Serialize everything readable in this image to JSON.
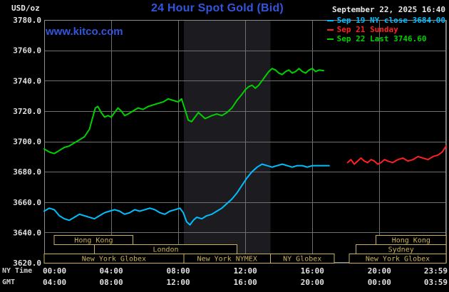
{
  "header": {
    "unit_label": "USD/oz",
    "title": "24 Hour Spot Gold (Bid)",
    "datetime": "September 22, 2025 16:40",
    "watermark": "www.kitco.com"
  },
  "colors": {
    "background": "#000000",
    "title_blue": "#3355dd",
    "text_white": "#e0e0e0",
    "grid": "#6f6f6f",
    "plot_border": "#8c8c8c",
    "session": "#c9b25a",
    "nymex_band": "#1b1b20",
    "sep19": "#00bfff",
    "sep21": "#ff2020",
    "sep22": "#00d000"
  },
  "legend": {
    "items": [
      {
        "id": "sep19",
        "label": "Sep 19 NY close 3684.00",
        "color": "#00bfff"
      },
      {
        "id": "sep21",
        "label": "Sep 21 Sunday",
        "color": "#ff2020"
      },
      {
        "id": "sep22",
        "label": "Sep 22 Last 3746.60",
        "color": "#00d000"
      }
    ]
  },
  "axis_labels": {
    "ny_time": "NY Time",
    "gmt": "GMT"
  },
  "chart_data": {
    "type": "line",
    "title": "24 Hour Spot Gold (Bid)",
    "ylabel": "USD/oz",
    "xlim_hours": [
      0,
      23.983
    ],
    "ylim": [
      3620,
      3780
    ],
    "grid": true,
    "legend_position": "top-right",
    "y_ticks": [
      3780,
      3760,
      3740,
      3720,
      3700,
      3680,
      3660,
      3640,
      3620
    ],
    "y_tick_labels": [
      "3780.0",
      "3760.0",
      "3740.0",
      "3720.0",
      "3700.0",
      "3680.0",
      "3660.0",
      "3640.0",
      "3620.0"
    ],
    "x_ticks": {
      "hours": [
        0,
        4,
        8,
        12,
        16,
        20,
        23.983
      ],
      "ny_labels": [
        "00:00",
        "04:00",
        "08:00",
        "12:00",
        "16:00",
        "20:00",
        "23:59"
      ],
      "gmt_labels": [
        "04:00",
        "08:00",
        "12:00",
        "16:00",
        "20:00",
        "00:00",
        "03:59"
      ]
    },
    "shaded_region_hours": [
      8.33,
      13.5
    ],
    "series": [
      {
        "id": "sep19",
        "name": "Sep 19 NY close",
        "close_value": 3684.0,
        "color": "#00bfff",
        "points": [
          [
            0,
            3654
          ],
          [
            0.3,
            3656
          ],
          [
            0.6,
            3655
          ],
          [
            0.9,
            3651
          ],
          [
            1.2,
            3649
          ],
          [
            1.5,
            3648
          ],
          [
            1.8,
            3650
          ],
          [
            2.1,
            3652
          ],
          [
            2.4,
            3651
          ],
          [
            2.7,
            3650
          ],
          [
            3.0,
            3649
          ],
          [
            3.3,
            3651
          ],
          [
            3.6,
            3653
          ],
          [
            3.9,
            3654
          ],
          [
            4.2,
            3655
          ],
          [
            4.5,
            3654
          ],
          [
            4.8,
            3652
          ],
          [
            5.1,
            3653
          ],
          [
            5.4,
            3655
          ],
          [
            5.7,
            3654
          ],
          [
            6.0,
            3655
          ],
          [
            6.3,
            3656
          ],
          [
            6.6,
            3655
          ],
          [
            6.9,
            3653
          ],
          [
            7.2,
            3652
          ],
          [
            7.5,
            3654
          ],
          [
            7.8,
            3655
          ],
          [
            8.1,
            3656
          ],
          [
            8.3,
            3653
          ],
          [
            8.5,
            3647
          ],
          [
            8.7,
            3645
          ],
          [
            8.9,
            3648
          ],
          [
            9.1,
            3650
          ],
          [
            9.4,
            3649
          ],
          [
            9.7,
            3651
          ],
          [
            10.0,
            3652
          ],
          [
            10.3,
            3654
          ],
          [
            10.6,
            3656
          ],
          [
            10.9,
            3659
          ],
          [
            11.2,
            3662
          ],
          [
            11.5,
            3666
          ],
          [
            11.8,
            3671
          ],
          [
            12.1,
            3676
          ],
          [
            12.4,
            3680
          ],
          [
            12.7,
            3683
          ],
          [
            13.0,
            3685
          ],
          [
            13.3,
            3684
          ],
          [
            13.6,
            3683
          ],
          [
            13.9,
            3684
          ],
          [
            14.2,
            3685
          ],
          [
            14.5,
            3684
          ],
          [
            14.8,
            3683
          ],
          [
            15.1,
            3684
          ],
          [
            15.4,
            3684
          ],
          [
            15.7,
            3683
          ],
          [
            16.0,
            3684
          ],
          [
            16.4,
            3684
          ],
          [
            16.7,
            3684
          ],
          [
            17.0,
            3684
          ]
        ]
      },
      {
        "id": "sep21",
        "name": "Sep 21 Sunday",
        "color": "#ff2020",
        "points": [
          [
            18.1,
            3686
          ],
          [
            18.3,
            3688
          ],
          [
            18.5,
            3685
          ],
          [
            18.7,
            3687
          ],
          [
            18.9,
            3689
          ],
          [
            19.1,
            3687
          ],
          [
            19.3,
            3686
          ],
          [
            19.5,
            3688
          ],
          [
            19.7,
            3687
          ],
          [
            19.9,
            3685
          ],
          [
            20.1,
            3686
          ],
          [
            20.3,
            3688
          ],
          [
            20.5,
            3687
          ],
          [
            20.8,
            3686
          ],
          [
            21.1,
            3688
          ],
          [
            21.4,
            3689
          ],
          [
            21.7,
            3687
          ],
          [
            22.0,
            3688
          ],
          [
            22.3,
            3690
          ],
          [
            22.6,
            3689
          ],
          [
            22.9,
            3688
          ],
          [
            23.2,
            3690
          ],
          [
            23.5,
            3691
          ],
          [
            23.75,
            3693
          ],
          [
            23.983,
            3697
          ]
        ]
      },
      {
        "id": "sep22",
        "name": "Sep 22",
        "last_value": 3746.6,
        "color": "#00d000",
        "points": [
          [
            0,
            3695
          ],
          [
            0.3,
            3693
          ],
          [
            0.6,
            3692
          ],
          [
            0.9,
            3694
          ],
          [
            1.2,
            3696
          ],
          [
            1.5,
            3697
          ],
          [
            1.8,
            3699
          ],
          [
            2.1,
            3701
          ],
          [
            2.4,
            3703
          ],
          [
            2.7,
            3708
          ],
          [
            2.9,
            3716
          ],
          [
            3.05,
            3722
          ],
          [
            3.2,
            3723
          ],
          [
            3.4,
            3719
          ],
          [
            3.6,
            3716
          ],
          [
            3.8,
            3717
          ],
          [
            4.0,
            3716
          ],
          [
            4.2,
            3719
          ],
          [
            4.4,
            3722
          ],
          [
            4.6,
            3720
          ],
          [
            4.8,
            3717
          ],
          [
            5.0,
            3718
          ],
          [
            5.3,
            3720
          ],
          [
            5.6,
            3722
          ],
          [
            5.9,
            3721
          ],
          [
            6.2,
            3723
          ],
          [
            6.5,
            3724
          ],
          [
            6.8,
            3725
          ],
          [
            7.1,
            3726
          ],
          [
            7.4,
            3728
          ],
          [
            7.7,
            3727
          ],
          [
            8.0,
            3726
          ],
          [
            8.2,
            3728
          ],
          [
            8.4,
            3721
          ],
          [
            8.6,
            3714
          ],
          [
            8.8,
            3713
          ],
          [
            9.0,
            3716
          ],
          [
            9.2,
            3719
          ],
          [
            9.4,
            3717
          ],
          [
            9.6,
            3715
          ],
          [
            9.8,
            3716
          ],
          [
            10.0,
            3717
          ],
          [
            10.3,
            3718
          ],
          [
            10.6,
            3717
          ],
          [
            10.9,
            3719
          ],
          [
            11.2,
            3722
          ],
          [
            11.5,
            3727
          ],
          [
            11.8,
            3731
          ],
          [
            12.0,
            3734
          ],
          [
            12.2,
            3736
          ],
          [
            12.4,
            3737
          ],
          [
            12.6,
            3735
          ],
          [
            12.8,
            3737
          ],
          [
            13.0,
            3740
          ],
          [
            13.2,
            3743
          ],
          [
            13.4,
            3746
          ],
          [
            13.6,
            3748
          ],
          [
            13.8,
            3747
          ],
          [
            14.0,
            3745
          ],
          [
            14.2,
            3744
          ],
          [
            14.4,
            3746
          ],
          [
            14.6,
            3747
          ],
          [
            14.8,
            3745
          ],
          [
            15.0,
            3746
          ],
          [
            15.2,
            3748
          ],
          [
            15.4,
            3746
          ],
          [
            15.6,
            3745
          ],
          [
            15.8,
            3747
          ],
          [
            16.0,
            3748
          ],
          [
            16.2,
            3746
          ],
          [
            16.4,
            3747
          ],
          [
            16.67,
            3746.6
          ]
        ]
      }
    ],
    "sessions": {
      "rows": [
        [
          {
            "label": "Hong Kong",
            "start_hour": 0.6,
            "end_hour": 5.3
          },
          {
            "label": "Hong Kong",
            "start_hour": 19.8,
            "end_hour": 23.983
          }
        ],
        [
          {
            "label": "London",
            "start_hour": 3.0,
            "end_hour": 11.5
          },
          {
            "label": "Sydney",
            "start_hour": 18.6,
            "end_hour": 23.983
          }
        ],
        [
          {
            "label": "New York Globex",
            "start_hour": 0,
            "end_hour": 8.33
          },
          {
            "label": "New York NYMEX",
            "start_hour": 8.33,
            "end_hour": 13.5
          },
          {
            "label": "NY Globex",
            "start_hour": 13.5,
            "end_hour": 17.3
          },
          {
            "label": "New York Globex",
            "start_hour": 18.2,
            "end_hour": 23.983
          }
        ]
      ]
    }
  }
}
